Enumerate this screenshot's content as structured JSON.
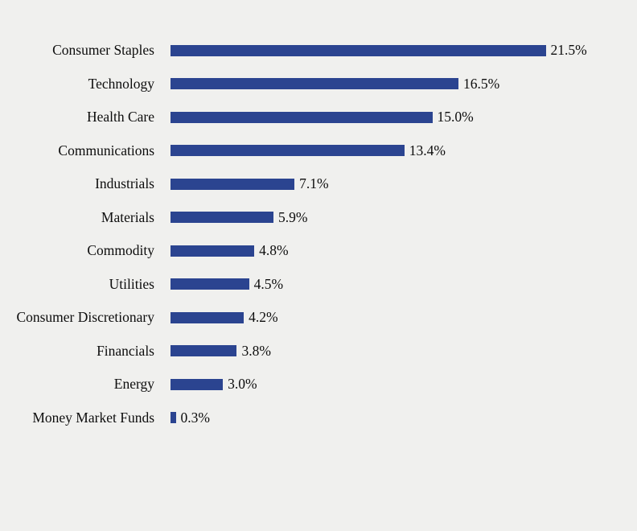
{
  "chart_data": {
    "type": "bar",
    "orientation": "horizontal",
    "title": "",
    "xlabel": "",
    "ylabel": "",
    "categories": [
      "Consumer Staples",
      "Technology",
      "Health Care",
      "Communications",
      "Industrials",
      "Materials",
      "Commodity",
      "Utilities",
      "Consumer Discretionary",
      "Financials",
      "Energy",
      "Money Market Funds"
    ],
    "values": [
      21.5,
      16.5,
      15.0,
      13.4,
      7.1,
      5.9,
      4.8,
      4.5,
      4.2,
      3.8,
      3.0,
      0.3
    ],
    "value_labels": [
      "21.5%",
      "16.5%",
      "15.0%",
      "13.4%",
      "7.1%",
      "5.9%",
      "4.8%",
      "4.5%",
      "4.2%",
      "3.8%",
      "3.0%",
      "0.3%"
    ],
    "unit": "%",
    "xlim": [
      0,
      23
    ],
    "grid": false,
    "legend": false,
    "axes_visible": false,
    "data_labels_position": "end-of-bar",
    "category_labels_position": "left",
    "bar_color": "#2b4490",
    "background_color": "#f0f0ee",
    "text_color": "#0d0d0d"
  }
}
